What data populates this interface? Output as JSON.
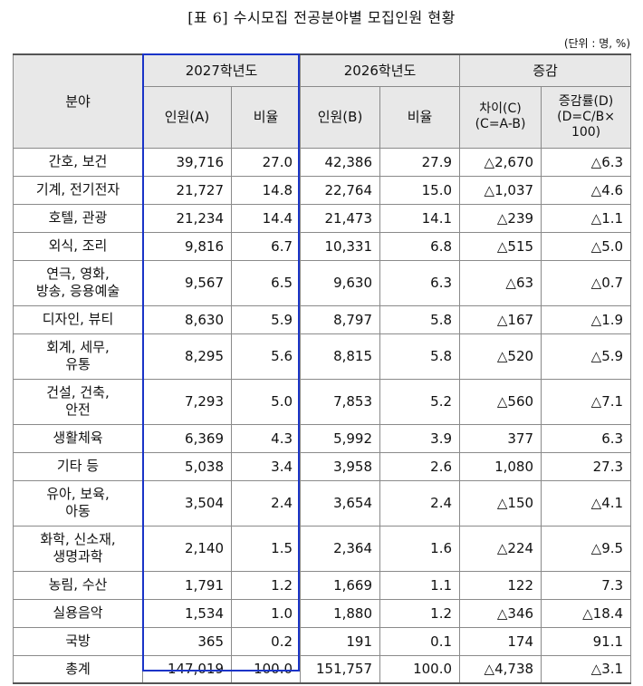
{
  "title": "[표 6] 수시모집 전공분야별 모집인원 현황",
  "unit_note": "(단위 : 명, %)",
  "header": {
    "field": "분야",
    "year2027": "2027학년도",
    "year2026": "2026학년도",
    "change": "증감",
    "count_a": "인원(A)",
    "ratio_1": "비율",
    "count_b": "인원(B)",
    "ratio_2": "비율",
    "diff_1": "차이(C)",
    "diff_2": "(C=A-B)",
    "rate_1": "증감률(D)",
    "rate_2": "(D=C/B×",
    "rate_3": "100)"
  },
  "rows": [
    {
      "field_lines": [
        "간호, 보건"
      ],
      "a": "39,716",
      "ra": "27.0",
      "b": "42,386",
      "rb": "27.9",
      "c": "△2,670",
      "d": "△6.3"
    },
    {
      "field_lines": [
        "기계, 전기전자"
      ],
      "a": "21,727",
      "ra": "14.8",
      "b": "22,764",
      "rb": "15.0",
      "c": "△1,037",
      "d": "△4.6"
    },
    {
      "field_lines": [
        "호텔, 관광"
      ],
      "a": "21,234",
      "ra": "14.4",
      "b": "21,473",
      "rb": "14.1",
      "c": "△239",
      "d": "△1.1"
    },
    {
      "field_lines": [
        "외식, 조리"
      ],
      "a": "9,816",
      "ra": "6.7",
      "b": "10,331",
      "rb": "6.8",
      "c": "△515",
      "d": "△5.0"
    },
    {
      "field_lines": [
        "연극, 영화,",
        "방송, 응용예술"
      ],
      "a": "9,567",
      "ra": "6.5",
      "b": "9,630",
      "rb": "6.3",
      "c": "△63",
      "d": "△0.7"
    },
    {
      "field_lines": [
        "디자인, 뷰티"
      ],
      "a": "8,630",
      "ra": "5.9",
      "b": "8,797",
      "rb": "5.8",
      "c": "△167",
      "d": "△1.9"
    },
    {
      "field_lines": [
        "회계, 세무,",
        "유통"
      ],
      "a": "8,295",
      "ra": "5.6",
      "b": "8,815",
      "rb": "5.8",
      "c": "△520",
      "d": "△5.9"
    },
    {
      "field_lines": [
        "건설, 건축,",
        "안전"
      ],
      "a": "7,293",
      "ra": "5.0",
      "b": "7,853",
      "rb": "5.2",
      "c": "△560",
      "d": "△7.1"
    },
    {
      "field_lines": [
        "생활체육"
      ],
      "a": "6,369",
      "ra": "4.3",
      "b": "5,992",
      "rb": "3.9",
      "c": "377",
      "d": "6.3"
    },
    {
      "field_lines": [
        "기타 등"
      ],
      "a": "5,038",
      "ra": "3.4",
      "b": "3,958",
      "rb": "2.6",
      "c": "1,080",
      "d": "27.3"
    },
    {
      "field_lines": [
        "유아, 보육,",
        "아동"
      ],
      "a": "3,504",
      "ra": "2.4",
      "b": "3,654",
      "rb": "2.4",
      "c": "△150",
      "d": "△4.1"
    },
    {
      "field_lines": [
        "화학, 신소재,",
        "생명과학"
      ],
      "a": "2,140",
      "ra": "1.5",
      "b": "2,364",
      "rb": "1.6",
      "c": "△224",
      "d": "△9.5"
    },
    {
      "field_lines": [
        "농림, 수산"
      ],
      "a": "1,791",
      "ra": "1.2",
      "b": "1,669",
      "rb": "1.1",
      "c": "122",
      "d": "7.3"
    },
    {
      "field_lines": [
        "실용음악"
      ],
      "a": "1,534",
      "ra": "1.0",
      "b": "1,880",
      "rb": "1.2",
      "c": "△346",
      "d": "△18.4"
    },
    {
      "field_lines": [
        "국방"
      ],
      "a": "365",
      "ra": "0.2",
      "b": "191",
      "rb": "0.1",
      "c": "174",
      "d": "91.1"
    },
    {
      "field_lines": [
        "총계"
      ],
      "a": "147,019",
      "ra": "100.0",
      "b": "151,757",
      "rb": "100.0",
      "c": "△4,738",
      "d": "△3.1"
    }
  ],
  "colors": {
    "highlight_border": "#1a34c8",
    "header_bg": "#e8e8e8"
  }
}
